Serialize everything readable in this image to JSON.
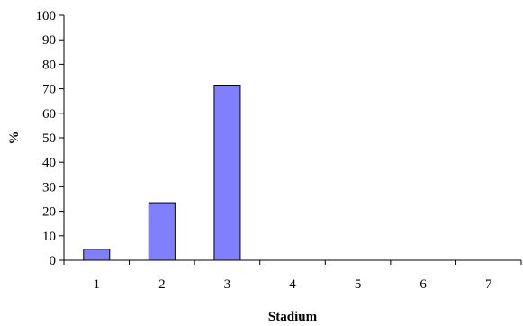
{
  "chart_data": {
    "type": "bar",
    "title": "",
    "xlabel": "Stadium",
    "ylabel": "%",
    "categories": [
      "1",
      "2",
      "3",
      "4",
      "5",
      "6",
      "7"
    ],
    "values": [
      4.5,
      23.5,
      71.5,
      0,
      0,
      0,
      0
    ],
    "ylim": [
      0,
      100
    ],
    "yticks": [
      "0",
      "10",
      "20",
      "30",
      "40",
      "50",
      "60",
      "70",
      "80",
      "90",
      "100"
    ],
    "grid": false,
    "legend": "none",
    "colors": {
      "bar_fill": "#8080ff",
      "bar_stroke": "#000000",
      "axis": "#000000"
    }
  }
}
